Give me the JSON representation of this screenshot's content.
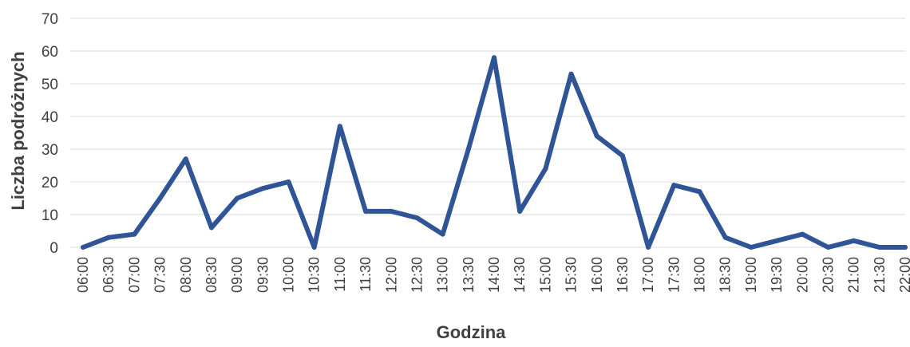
{
  "chart_data": {
    "type": "line",
    "xlabel": "Godzina",
    "ylabel": "Liczba podróżnych",
    "ylim": [
      0,
      70
    ],
    "yticks": [
      0,
      10,
      20,
      30,
      40,
      50,
      60,
      70
    ],
    "grid": true,
    "legend": "none",
    "categories": [
      "06:00",
      "06:30",
      "07:00",
      "07:30",
      "08:00",
      "08:30",
      "09:00",
      "09:30",
      "10:00",
      "10:30",
      "11:00",
      "11:30",
      "12:00",
      "12:30",
      "13:00",
      "13:30",
      "14:00",
      "14:30",
      "15:00",
      "15:30",
      "16:00",
      "16:30",
      "17:00",
      "17:30",
      "18:00",
      "18:30",
      "19:00",
      "19:30",
      "20:00",
      "20:30",
      "21:00",
      "21:30",
      "22:00"
    ],
    "series": [
      {
        "color": "#2f5597",
        "values": [
          0,
          3,
          4,
          15,
          27,
          6,
          15,
          18,
          20,
          0,
          37,
          11,
          11,
          9,
          4,
          30,
          58,
          11,
          24,
          53,
          34,
          28,
          0,
          19,
          17,
          3,
          0,
          2,
          4,
          0,
          2,
          0,
          0
        ]
      }
    ]
  }
}
